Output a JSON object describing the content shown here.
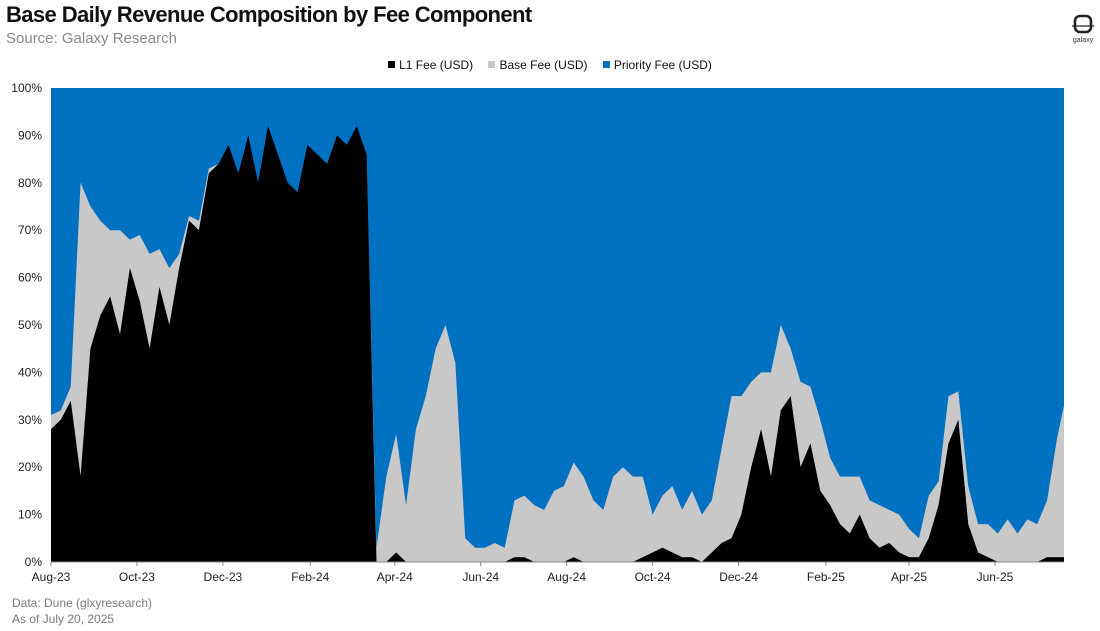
{
  "header": {
    "title": "Base Daily Revenue Composition by Fee Component",
    "subtitle": "Source: Galaxy Research"
  },
  "logo": {
    "text": "galaxy",
    "icon": "galaxy-logo-icon"
  },
  "footer": {
    "line1": "Data: Dune (glxyresearch)",
    "line2": "As of July 20, 2025"
  },
  "colors": {
    "l1": "#000000",
    "base": "#c8c8c8",
    "priority": "#0070c0"
  },
  "chart_data": {
    "type": "area",
    "stacked": true,
    "normalized": true,
    "xlabel": "",
    "ylabel": "",
    "ylim": [
      0,
      100
    ],
    "y_ticks": [
      "0%",
      "10%",
      "20%",
      "30%",
      "40%",
      "50%",
      "60%",
      "70%",
      "80%",
      "90%",
      "100%"
    ],
    "x_ticks": [
      "Aug-23",
      "Oct-23",
      "Dec-23",
      "Feb-24",
      "Apr-24",
      "Jun-24",
      "Aug-24",
      "Oct-24",
      "Dec-24",
      "Feb-25",
      "Apr-25",
      "Jun-25"
    ],
    "legend_position": "top-center",
    "x": [
      "2023-08-01",
      "2023-08-08",
      "2023-08-15",
      "2023-08-22",
      "2023-08-29",
      "2023-09-05",
      "2023-09-12",
      "2023-09-19",
      "2023-09-26",
      "2023-10-03",
      "2023-10-10",
      "2023-10-17",
      "2023-10-24",
      "2023-10-31",
      "2023-11-07",
      "2023-11-14",
      "2023-11-21",
      "2023-11-28",
      "2023-12-05",
      "2023-12-12",
      "2023-12-19",
      "2023-12-26",
      "2024-01-02",
      "2024-01-09",
      "2024-01-16",
      "2024-01-23",
      "2024-01-30",
      "2024-02-06",
      "2024-02-13",
      "2024-02-20",
      "2024-02-27",
      "2024-03-05",
      "2024-03-12",
      "2024-03-19",
      "2024-03-26",
      "2024-04-02",
      "2024-04-09",
      "2024-04-16",
      "2024-04-23",
      "2024-04-30",
      "2024-05-07",
      "2024-05-14",
      "2024-05-21",
      "2024-05-28",
      "2024-06-04",
      "2024-06-11",
      "2024-06-18",
      "2024-06-25",
      "2024-07-02",
      "2024-07-09",
      "2024-07-16",
      "2024-07-23",
      "2024-07-30",
      "2024-08-06",
      "2024-08-13",
      "2024-08-20",
      "2024-08-27",
      "2024-09-03",
      "2024-09-10",
      "2024-09-17",
      "2024-09-24",
      "2024-10-01",
      "2024-10-08",
      "2024-10-15",
      "2024-10-22",
      "2024-10-29",
      "2024-11-05",
      "2024-11-12",
      "2024-11-19",
      "2024-11-26",
      "2024-12-03",
      "2024-12-10",
      "2024-12-17",
      "2024-12-24",
      "2024-12-31",
      "2025-01-07",
      "2025-01-14",
      "2025-01-21",
      "2025-01-28",
      "2025-02-04",
      "2025-02-11",
      "2025-02-18",
      "2025-02-25",
      "2025-03-04",
      "2025-03-11",
      "2025-03-18",
      "2025-03-25",
      "2025-04-01",
      "2025-04-08",
      "2025-04-15",
      "2025-04-22",
      "2025-04-29",
      "2025-05-06",
      "2025-05-13",
      "2025-05-20",
      "2025-05-27",
      "2025-06-03",
      "2025-06-10",
      "2025-06-17",
      "2025-06-24",
      "2025-07-01",
      "2025-07-08",
      "2025-07-15",
      "2025-07-20"
    ],
    "series": [
      {
        "name": "L1 Fee (USD)",
        "values": [
          28,
          30,
          34,
          18,
          45,
          52,
          56,
          48,
          62,
          55,
          45,
          58,
          50,
          62,
          72,
          70,
          82,
          84,
          88,
          82,
          90,
          80,
          92,
          86,
          80,
          78,
          88,
          86,
          84,
          90,
          88,
          92,
          86,
          0,
          0,
          2,
          0,
          0,
          0,
          0,
          0,
          0,
          0,
          0,
          0,
          0,
          0,
          1,
          1,
          0,
          0,
          0,
          0,
          1,
          0,
          0,
          0,
          0,
          0,
          0,
          1,
          2,
          3,
          2,
          1,
          1,
          0,
          2,
          4,
          5,
          10,
          20,
          28,
          18,
          32,
          35,
          20,
          25,
          15,
          12,
          8,
          6,
          10,
          5,
          3,
          4,
          2,
          1,
          1,
          5,
          12,
          25,
          30,
          8,
          2,
          1,
          0,
          0,
          0,
          0,
          0,
          1,
          1,
          1
        ]
      },
      {
        "name": "Base Fee (USD)",
        "values": [
          3,
          2,
          3,
          62,
          30,
          20,
          14,
          22,
          6,
          14,
          20,
          8,
          12,
          3,
          1,
          2,
          1,
          0,
          0,
          0,
          0,
          0,
          0,
          0,
          0,
          0,
          0,
          0,
          0,
          0,
          0,
          0,
          0,
          3,
          18,
          25,
          12,
          28,
          35,
          45,
          50,
          42,
          5,
          3,
          3,
          4,
          3,
          12,
          13,
          12,
          11,
          15,
          16,
          20,
          18,
          13,
          11,
          18,
          20,
          18,
          17,
          8,
          11,
          14,
          10,
          14,
          10,
          11,
          20,
          30,
          25,
          18,
          12,
          22,
          18,
          10,
          18,
          12,
          15,
          10,
          10,
          12,
          8,
          8,
          9,
          7,
          8,
          6,
          4,
          9,
          5,
          10,
          6,
          8,
          6,
          7,
          6,
          9,
          6,
          9,
          8,
          12,
          25,
          32
        ]
      }
    ]
  }
}
